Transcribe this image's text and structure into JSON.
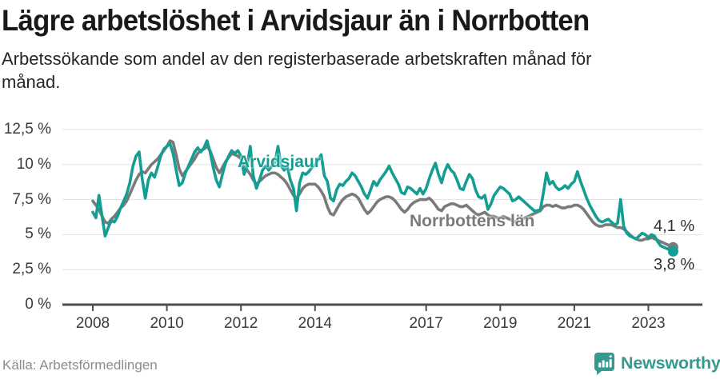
{
  "chart_data": {
    "type": "line",
    "title": "Lägre arbetslöshet i Arvidsjaur än i Norrbotten",
    "subtitle": "Arbetssökande som andel av den registerbaserade arbetskraften månad för månad.",
    "x_start": 2008,
    "x_step_months": 1,
    "xlim": [
      2008,
      2023.75
    ],
    "ylim": [
      0,
      12.5
    ],
    "grid": true,
    "legend_position": "inline-labels",
    "colors": {
      "grid": "#E1E1E1",
      "axis": "#4D4D4D"
    },
    "yticks": [
      {
        "value": 0,
        "label": "0 %"
      },
      {
        "value": 2.5,
        "label": "2,5 %"
      },
      {
        "value": 5,
        "label": "5 %"
      },
      {
        "value": 7.5,
        "label": "7,5 %"
      },
      {
        "value": 10,
        "label": "10 %"
      },
      {
        "value": 12.5,
        "label": "12,5 %"
      }
    ],
    "xticks": [
      {
        "value": 2008,
        "label": "2008"
      },
      {
        "value": 2010,
        "label": "2010"
      },
      {
        "value": 2012,
        "label": "2012"
      },
      {
        "value": 2014,
        "label": "2014"
      },
      {
        "value": 2017,
        "label": "2017"
      },
      {
        "value": 2019,
        "label": "2019"
      },
      {
        "value": 2021,
        "label": "2021"
      },
      {
        "value": 2023,
        "label": "2023"
      }
    ],
    "series": [
      {
        "key": "arvidsjaur",
        "name": "Arvidsjaur",
        "color": "#149E93",
        "end_label": "3,8 %",
        "end_value": 3.8,
        "values": [
          6.6,
          6.2,
          7.8,
          6.3,
          4.9,
          5.5,
          6.0,
          5.9,
          6.3,
          6.9,
          7.4,
          7.9,
          8.7,
          9.9,
          10.6,
          10.9,
          9.0,
          7.6,
          8.9,
          9.4,
          9.1,
          9.8,
          10.6,
          11.1,
          11.3,
          11.5,
          10.8,
          9.6,
          8.5,
          8.7,
          9.4,
          9.9,
          10.4,
          10.9,
          11.2,
          10.9,
          11.2,
          11.7,
          10.9,
          9.8,
          8.9,
          8.4,
          9.3,
          10.1,
          10.6,
          11.0,
          10.8,
          11.0,
          10.6,
          9.3,
          9.9,
          11.3,
          9.2,
          8.3,
          8.9,
          9.6,
          9.9,
          9.6,
          9.9,
          10.1,
          11.3,
          9.9,
          9.6,
          9.9,
          8.9,
          8.3,
          6.7,
          8.7,
          9.4,
          9.3,
          9.5,
          9.8,
          10.0,
          10.3,
          10.7,
          9.2,
          8.8,
          7.6,
          7.4,
          8.2,
          8.6,
          8.5,
          8.8,
          9.0,
          9.4,
          9.2,
          8.8,
          8.4,
          7.9,
          7.6,
          8.2,
          8.8,
          8.5,
          8.9,
          9.2,
          9.5,
          9.9,
          9.4,
          9.0,
          8.6,
          8.0,
          7.9,
          8.4,
          8.3,
          8.1,
          7.9,
          8.3,
          7.9,
          8.3,
          9.0,
          9.6,
          10.1,
          9.3,
          8.7,
          9.5,
          10.0,
          9.6,
          9.4,
          8.9,
          8.3,
          8.2,
          8.8,
          9.3,
          9.0,
          8.2,
          7.7,
          7.6,
          7.8,
          6.8,
          7.2,
          7.8,
          8.1,
          8.4,
          8.3,
          8.1,
          7.9,
          7.4,
          7.5,
          7.7,
          7.5,
          7.3,
          7.1,
          6.9,
          6.7,
          6.7,
          6.8,
          8.0,
          9.4,
          8.6,
          8.8,
          8.4,
          8.2,
          8.3,
          8.5,
          8.3,
          8.6,
          8.8,
          9.5,
          8.8,
          8.2,
          7.6,
          7.1,
          6.7,
          6.3,
          6.0,
          5.9,
          6.0,
          6.1,
          5.9,
          5.7,
          5.8,
          7.5,
          5.6,
          5.1,
          4.9,
          4.8,
          4.7,
          4.9,
          5.1,
          5.0,
          4.8,
          5.0,
          4.9,
          4.5,
          4.2,
          4.1,
          4.0,
          3.9,
          3.8
        ]
      },
      {
        "key": "norrbotten",
        "name": "Norrbottens län",
        "color": "#7A7A7A",
        "end_label": "4,1 %",
        "end_value": 4.1,
        "values": [
          7.4,
          7.1,
          6.8,
          6.3,
          5.9,
          5.8,
          6.1,
          6.3,
          6.6,
          6.9,
          7.1,
          7.4,
          7.9,
          8.4,
          8.9,
          9.3,
          9.5,
          9.4,
          9.7,
          10.0,
          10.2,
          10.4,
          10.7,
          11.0,
          11.3,
          11.7,
          11.6,
          10.7,
          9.7,
          9.2,
          9.5,
          9.8,
          10.1,
          10.4,
          10.8,
          11.0,
          11.1,
          11.3,
          11.0,
          10.4,
          9.8,
          9.4,
          9.8,
          10.2,
          10.5,
          10.8,
          10.7,
          10.6,
          10.4,
          10.0,
          9.6,
          9.3,
          8.9,
          8.6,
          8.8,
          9.0,
          9.2,
          9.3,
          9.4,
          9.4,
          9.3,
          9.1,
          8.9,
          8.6,
          8.2,
          7.8,
          7.6,
          7.9,
          8.3,
          8.5,
          8.6,
          8.6,
          8.6,
          8.4,
          8.1,
          7.7,
          7.0,
          6.5,
          6.4,
          6.8,
          7.2,
          7.5,
          7.7,
          7.8,
          7.9,
          7.8,
          7.6,
          7.2,
          6.8,
          6.5,
          6.7,
          7.0,
          7.3,
          7.5,
          7.6,
          7.7,
          7.7,
          7.6,
          7.4,
          7.1,
          6.8,
          6.6,
          6.8,
          7.1,
          7.3,
          7.4,
          7.5,
          7.5,
          7.5,
          7.6,
          7.4,
          7.1,
          6.8,
          6.7,
          7.0,
          7.1,
          7.2,
          7.2,
          7.1,
          7.0,
          7.0,
          7.1,
          6.9,
          6.7,
          6.5,
          6.4,
          6.5,
          6.6,
          6.4,
          6.3,
          6.3,
          6.2,
          6.2,
          6.3,
          6.2,
          6.1,
          6.0,
          5.9,
          6.0,
          6.1,
          6.2,
          6.3,
          6.4,
          6.5,
          6.6,
          6.7,
          7.0,
          7.1,
          7.1,
          7.0,
          7.1,
          7.0,
          6.9,
          6.9,
          7.0,
          7.0,
          7.1,
          7.1,
          7.0,
          6.8,
          6.5,
          6.2,
          5.9,
          5.7,
          5.6,
          5.6,
          5.7,
          5.7,
          5.7,
          5.6,
          5.5,
          5.5,
          5.4,
          5.2,
          5.0,
          4.8,
          4.7,
          4.6,
          4.6,
          4.7,
          4.7,
          4.8,
          4.7,
          4.6,
          4.5,
          4.4,
          4.3,
          4.2,
          4.1
        ]
      }
    ]
  },
  "footer": {
    "source": "Källa: Arbetsförmedlingen",
    "brand": "Newsworthy",
    "brand_color": "#35998F"
  }
}
